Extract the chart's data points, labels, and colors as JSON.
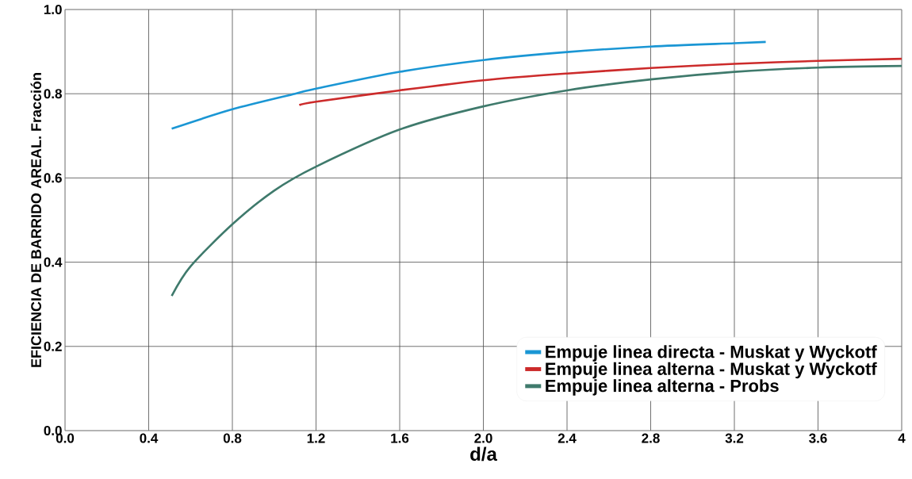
{
  "chart_data": {
    "type": "line",
    "xlabel": "d/a",
    "ylabel": "EFICIENCIA DE BARRIDO AREAL. Fracción",
    "xlim": [
      0,
      4
    ],
    "ylim": [
      0,
      1
    ],
    "xticks": [
      {
        "value": 0,
        "label": "0.0"
      },
      0.4,
      0.8,
      1.2,
      1.6,
      {
        "value": 2,
        "label": "2.0"
      },
      2.4,
      2.8,
      3.2,
      3.6,
      4
    ],
    "yticks": [
      {
        "value": 0,
        "label": "0.0"
      },
      0.2,
      0.4,
      0.6,
      0.8,
      {
        "value": 1,
        "label": "1.0"
      }
    ],
    "grid": true,
    "legend": "bottom right",
    "marker": "none",
    "line_style": "solid",
    "series": [
      {
        "name": "Empuje linea directa - Muskat y Wyckotf",
        "color": "#1a96d4",
        "x": [
          0.51,
          0.8,
          1.1,
          1.2,
          1.6,
          2.0,
          2.4,
          2.8,
          3.2,
          3.35
        ],
        "values": [
          0.717,
          0.763,
          0.8,
          0.812,
          0.852,
          0.88,
          0.899,
          0.912,
          0.92,
          0.923
        ]
      },
      {
        "name": "Empuje linea alterna - Muskat y Wyckotf",
        "color": "#cc2b2b",
        "x": [
          1.12,
          1.2,
          1.6,
          2.0,
          2.4,
          2.8,
          3.2,
          3.6,
          4.0
        ],
        "values": [
          0.773,
          0.781,
          0.808,
          0.832,
          0.848,
          0.861,
          0.871,
          0.878,
          0.883
        ]
      },
      {
        "name": "Empuje linea alterna - Probs",
        "color": "#3f7a6c",
        "x": [
          0.51,
          0.6,
          0.8,
          1.0,
          1.2,
          1.6,
          2.0,
          2.4,
          2.8,
          3.2,
          3.6,
          4.0
        ],
        "values": [
          0.32,
          0.39,
          0.49,
          0.57,
          0.627,
          0.715,
          0.77,
          0.808,
          0.834,
          0.852,
          0.862,
          0.866
        ]
      }
    ]
  }
}
